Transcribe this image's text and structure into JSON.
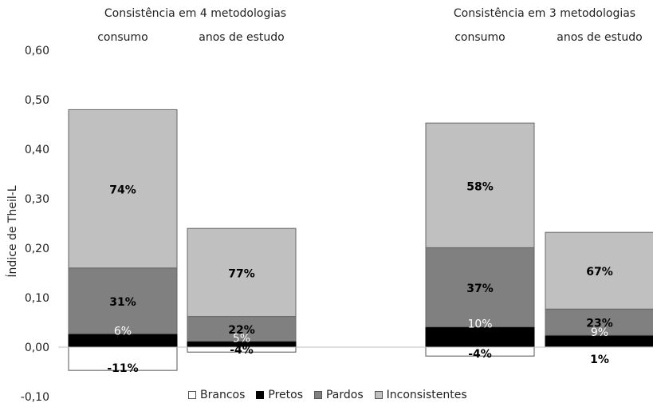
{
  "chart_data": {
    "type": "bar",
    "stacked": true,
    "ylabel": "Índice de Theil-L",
    "ylim": [
      -0.1,
      0.6
    ],
    "yticks": [
      "-0,10",
      "0,00",
      "0,10",
      "0,20",
      "0,30",
      "0,40",
      "0,50",
      "0,60"
    ],
    "group_titles": [
      "Consistência em 4 metodologias",
      "Consistência em 3 metodologias"
    ],
    "categories": [
      "consumo",
      "anos de estudo",
      "consumo",
      "anos de estudo"
    ],
    "series": [
      {
        "name": "Brancos",
        "color": "#ffffff",
        "values": [
          -0.047,
          -0.01,
          -0.018,
          0.002
        ],
        "labels": [
          "-11%",
          "-4%",
          "-4%",
          "1%"
        ]
      },
      {
        "name": "Pretos",
        "color": "#000000",
        "values": [
          0.027,
          0.012,
          0.041,
          0.022
        ],
        "labels": [
          "6%",
          "5%",
          "10%",
          "9%"
        ]
      },
      {
        "name": "Pardos",
        "color": "#808080",
        "values": [
          0.133,
          0.05,
          0.16,
          0.053
        ],
        "labels": [
          "31%",
          "22%",
          "37%",
          "23%"
        ]
      },
      {
        "name": "Inconsistentes",
        "color": "#c0c0c0",
        "values": [
          0.32,
          0.178,
          0.252,
          0.155
        ],
        "labels": [
          "74%",
          "77%",
          "58%",
          "67%"
        ]
      }
    ],
    "legend_position": "bottom",
    "grid": false
  }
}
